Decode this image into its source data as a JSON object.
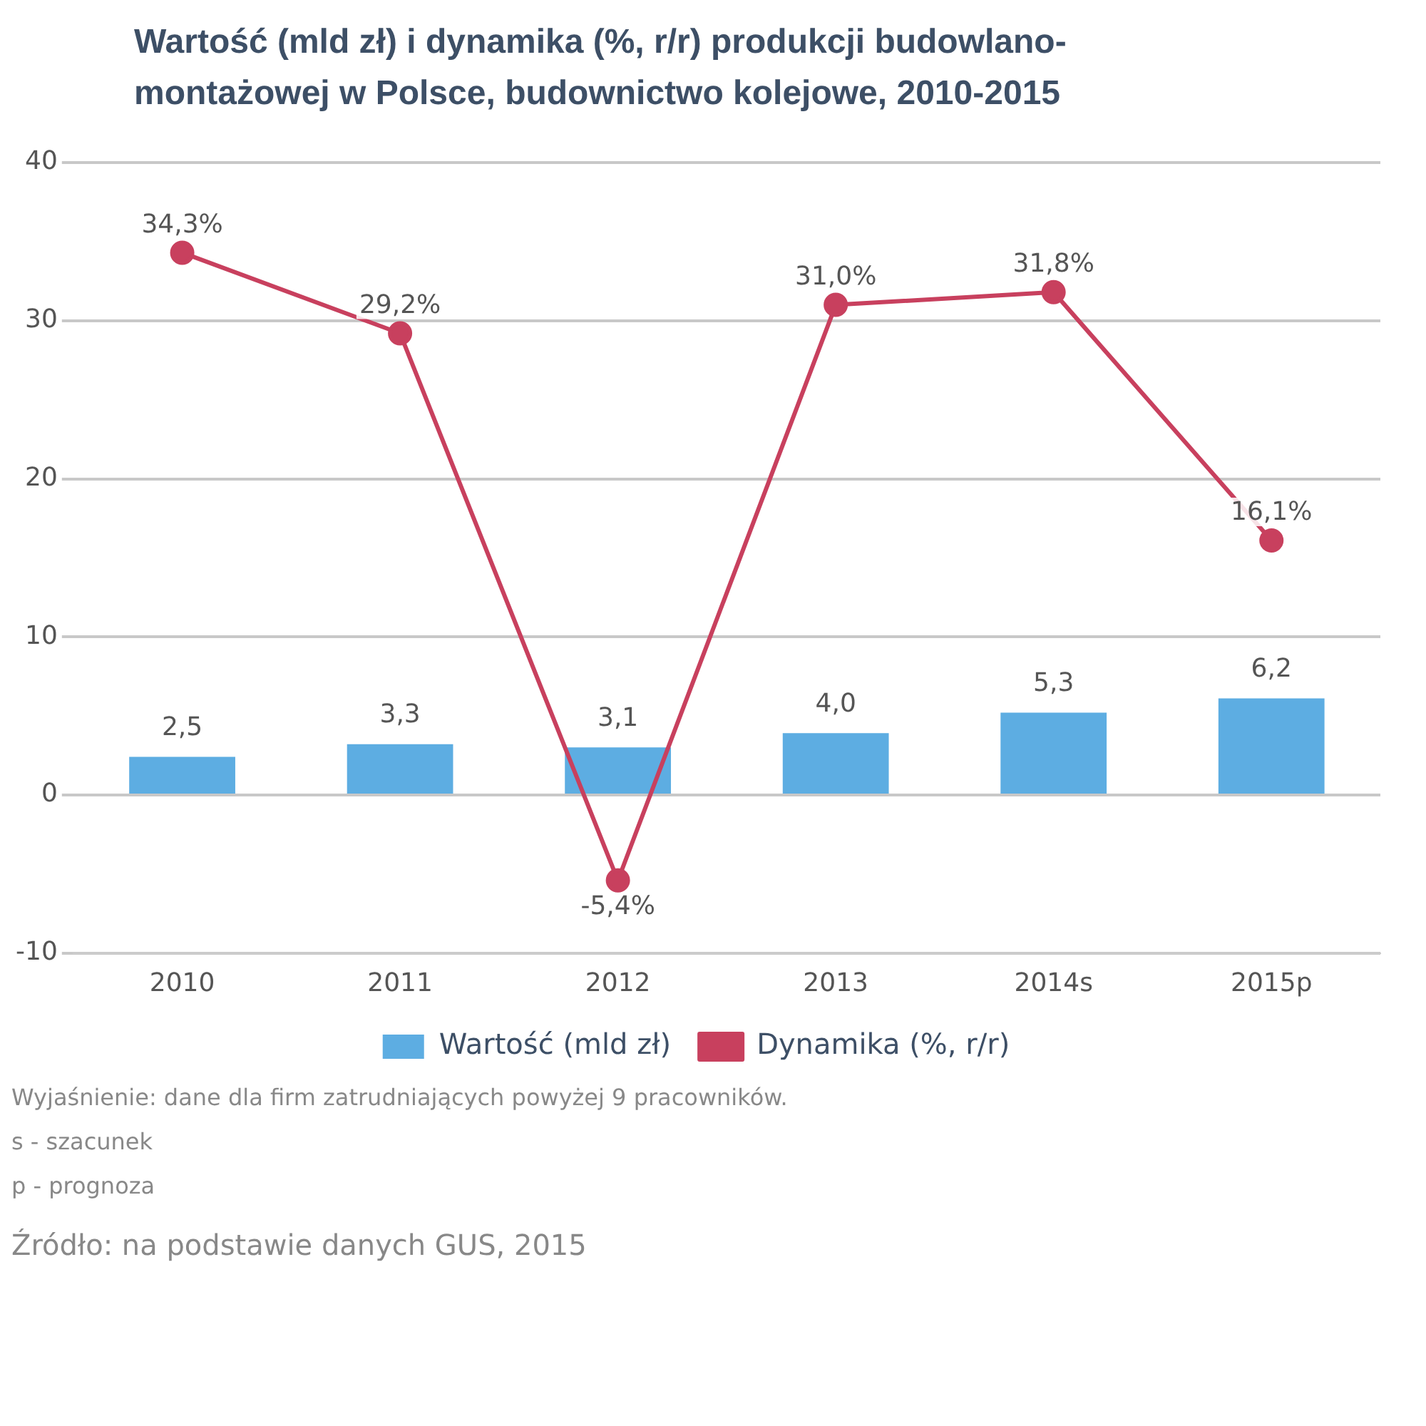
{
  "chart_data": {
    "type": "bar",
    "title": "Wartość (mld zł) i dynamika (%, r/r) produkcji budowlano-montażowej w Polsce, budownictwo kolejowe, 2010-2015",
    "categories": [
      "2010",
      "2011",
      "2012",
      "2013",
      "2014s",
      "2015p"
    ],
    "series": [
      {
        "name": "Wartość (mld zł)",
        "color": "#5dade2",
        "values": [
          2.5,
          3.3,
          3.1,
          4.0,
          5.3,
          6.2
        ],
        "value_labels": [
          "2,5",
          "3,3",
          "3,1",
          "4,0",
          "5,3",
          "6,2"
        ]
      },
      {
        "name": "Dynamika (%, r/r)",
        "type": "line",
        "color": "#c8405e",
        "marker": "circle",
        "values": [
          34.3,
          29.2,
          -5.4,
          31.0,
          31.8,
          16.1
        ],
        "value_labels": [
          "34,3%",
          "29,2%",
          "-5,4%",
          "31,0%",
          "31,8%",
          "16,1%"
        ]
      }
    ],
    "ylim": [
      -10,
      40
    ],
    "yticks": [
      -10,
      0,
      10,
      20,
      30,
      40
    ],
    "grid": "y",
    "legend": "bottom",
    "annotations": [
      "Wyjaśnienie: dane dla firm zatrudniających powyżej 9 pracowników.",
      "s - szacunek",
      "p - prognoza",
      "Źródło: na podstawie danych GUS, 2015"
    ]
  }
}
